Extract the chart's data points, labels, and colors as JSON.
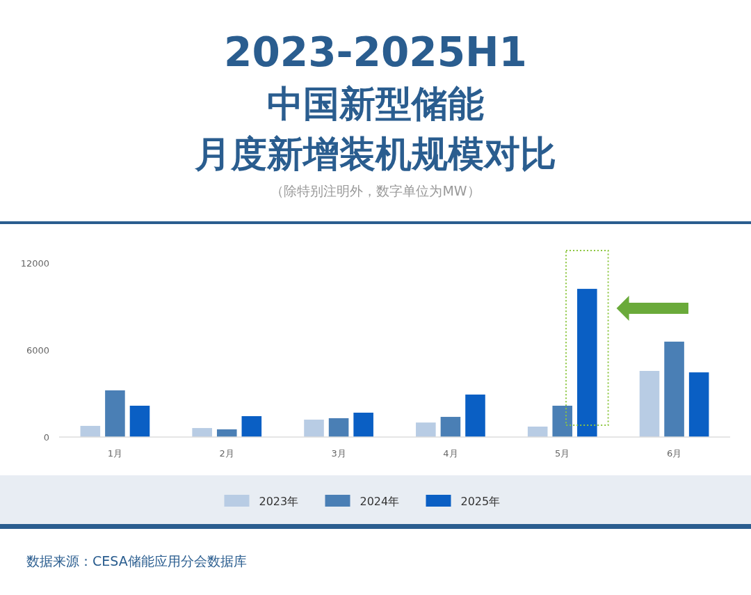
{
  "chart_data": {
    "type": "bar",
    "title": "2023-2025H1\n中国新型储能月度新增装机规模对比",
    "subtitle": "（除特别注明外，数字单位为MW）",
    "categories": [
      "1月",
      "2月",
      "3月",
      "4月",
      "5月",
      "6月"
    ],
    "series": [
      {
        "name": "2023年",
        "color": "#b8cce4",
        "values": [
          770,
          620,
          1200,
          1000,
          720,
          4560
        ]
      },
      {
        "name": "2024年",
        "color": "#4a7fb5",
        "values": [
          3220,
          530,
          1300,
          1390,
          2160,
          6580
        ]
      },
      {
        "name": "2025年",
        "color": "#0a5fc4",
        "values": [
          2160,
          1440,
          1680,
          2930,
          10220,
          4460
        ]
      }
    ],
    "ylim": [
      0,
      12000
    ],
    "yticks": [
      0,
      6000,
      12000
    ],
    "grid": false,
    "legend": "bottom",
    "annotations": [
      "数据来源：CESA储能应用分会数据库"
    ]
  }
}
